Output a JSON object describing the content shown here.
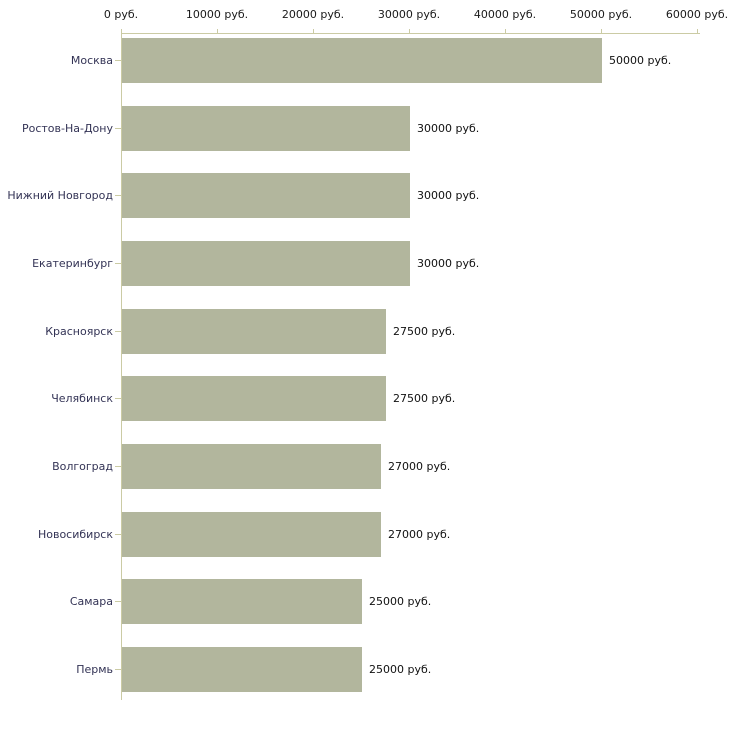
{
  "chart_data": {
    "type": "bar",
    "orientation": "horizontal",
    "unit": "руб.",
    "title": "",
    "categories": [
      "Москва",
      "Ростов-На-Дону",
      "Нижний Новгород",
      "Екатеринбург",
      "Красноярск",
      "Челябинск",
      "Волгоград",
      "Новосибирск",
      "Самара",
      "Пермь"
    ],
    "values": [
      50000,
      30000,
      30000,
      30000,
      27500,
      27500,
      27000,
      27000,
      25000,
      25000
    ],
    "bar_labels": [
      "50000 руб.",
      "30000 руб.",
      "30000 руб.",
      "30000 руб.",
      "27500 руб.",
      "27500 руб.",
      "27000 руб.",
      "27000 руб.",
      "25000 руб.",
      "25000 руб."
    ],
    "x_axis": {
      "position": "top",
      "range": [
        0,
        60000
      ],
      "ticks": [
        0,
        10000,
        20000,
        30000,
        40000,
        50000,
        60000
      ],
      "tick_labels": [
        "0 руб.",
        "10000 руб.",
        "20000 руб.",
        "30000 руб.",
        "40000 руб.",
        "50000 руб.",
        "60000 руб."
      ]
    },
    "grid": false,
    "legend": false,
    "colors": {
      "bar": "#b2b69d",
      "axis": "#cbcba4",
      "category_label": "#333355",
      "value_label": "#111111",
      "background": "#ffffff"
    }
  }
}
